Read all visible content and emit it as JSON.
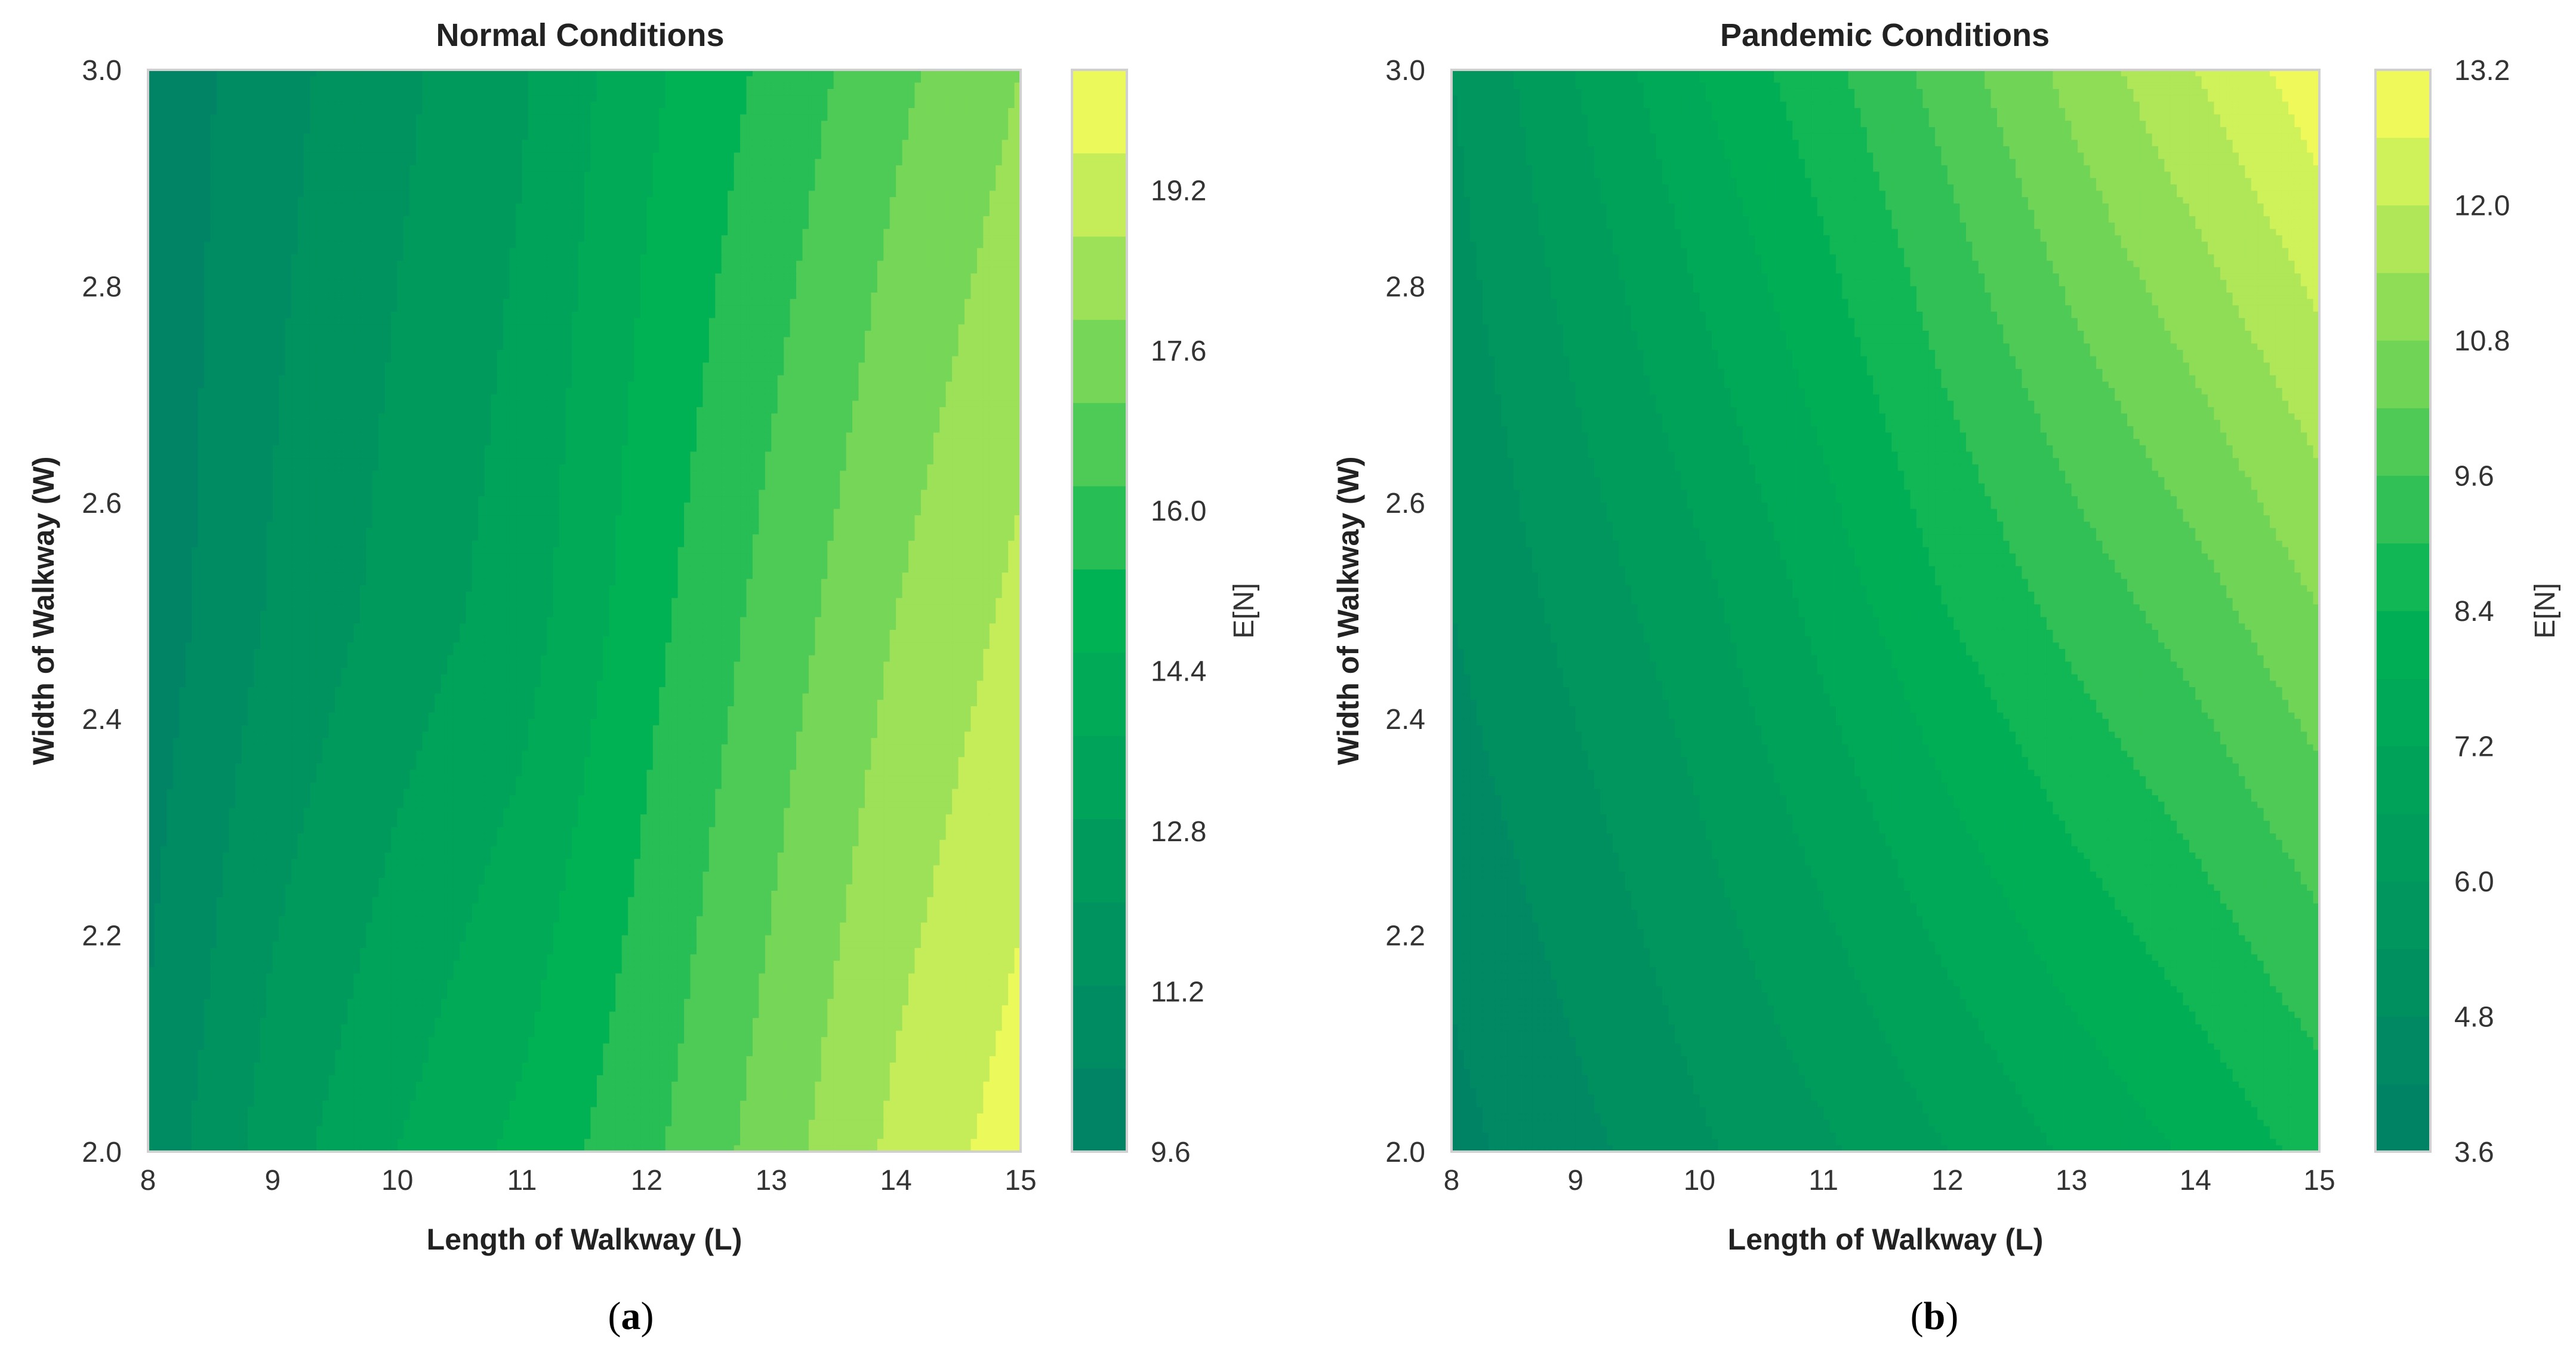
{
  "panel_labels": [
    {
      "open": "(",
      "letter": "a",
      "close": ")"
    },
    {
      "open": "(",
      "letter": "b",
      "close": ")"
    }
  ],
  "chart_data": [
    {
      "type": "contour",
      "title": "Normal Conditions",
      "xlabel": "Length of Walkway (L)",
      "ylabel": "Width of Walkway (W)",
      "xlim": [
        8,
        15
      ],
      "ylim": [
        2.0,
        3.0
      ],
      "xticks": [
        "8",
        "9",
        "10",
        "11",
        "12",
        "13",
        "14",
        "15"
      ],
      "yticks": [
        "2.0",
        "2.2",
        "2.4",
        "2.6",
        "2.8",
        "3.0"
      ],
      "x": [
        8,
        9,
        10,
        11,
        12,
        13,
        14,
        15
      ],
      "y": [
        2.0,
        2.5,
        3.0
      ],
      "z": [
        [
          10.6,
          12.4,
          13.6,
          14.6,
          15.8,
          17.2,
          18.6,
          19.6
        ],
        [
          9.9,
          11.3,
          12.3,
          13.2,
          14.9,
          16.3,
          17.6,
          18.6
        ],
        [
          9.8,
          10.9,
          11.8,
          12.7,
          14.2,
          15.4,
          16.6,
          17.6
        ]
      ],
      "colorbar": {
        "label": "E[N]",
        "min": 9.6,
        "max": 20.4,
        "step": 0.8,
        "ticks": [
          "9.6",
          "11.2",
          "12.8",
          "14.4",
          "16.0",
          "17.6",
          "19.2"
        ]
      }
    },
    {
      "type": "contour",
      "title": "Pandemic Conditions",
      "xlabel": "Length of Walkway (L)",
      "ylabel": "Width of Walkway (W)",
      "xlim": [
        8,
        15
      ],
      "ylim": [
        2.0,
        3.0
      ],
      "xticks": [
        "8",
        "9",
        "10",
        "11",
        "12",
        "13",
        "14",
        "15"
      ],
      "yticks": [
        "2.0",
        "2.2",
        "2.4",
        "2.6",
        "2.8",
        "3.0"
      ],
      "x": [
        8,
        9,
        10,
        11,
        12,
        13,
        14,
        15
      ],
      "y": [
        2.0,
        2.5,
        3.0
      ],
      "z": [
        [
          4.0,
          4.6,
          5.3,
          5.9,
          6.6,
          7.3,
          7.9,
          8.6
        ],
        [
          4.8,
          5.6,
          6.4,
          7.4,
          8.4,
          9.2,
          9.9,
          10.8
        ],
        [
          5.4,
          6.6,
          7.8,
          8.8,
          9.9,
          11.0,
          12.0,
          13.0
        ]
      ],
      "colorbar": {
        "label": "E[N]",
        "min": 3.6,
        "max": 13.2,
        "step": 0.6,
        "ticks": [
          "3.6",
          "4.8",
          "6.0",
          "7.2",
          "8.4",
          "9.6",
          "10.8",
          "12.0",
          "13.2"
        ]
      }
    }
  ]
}
